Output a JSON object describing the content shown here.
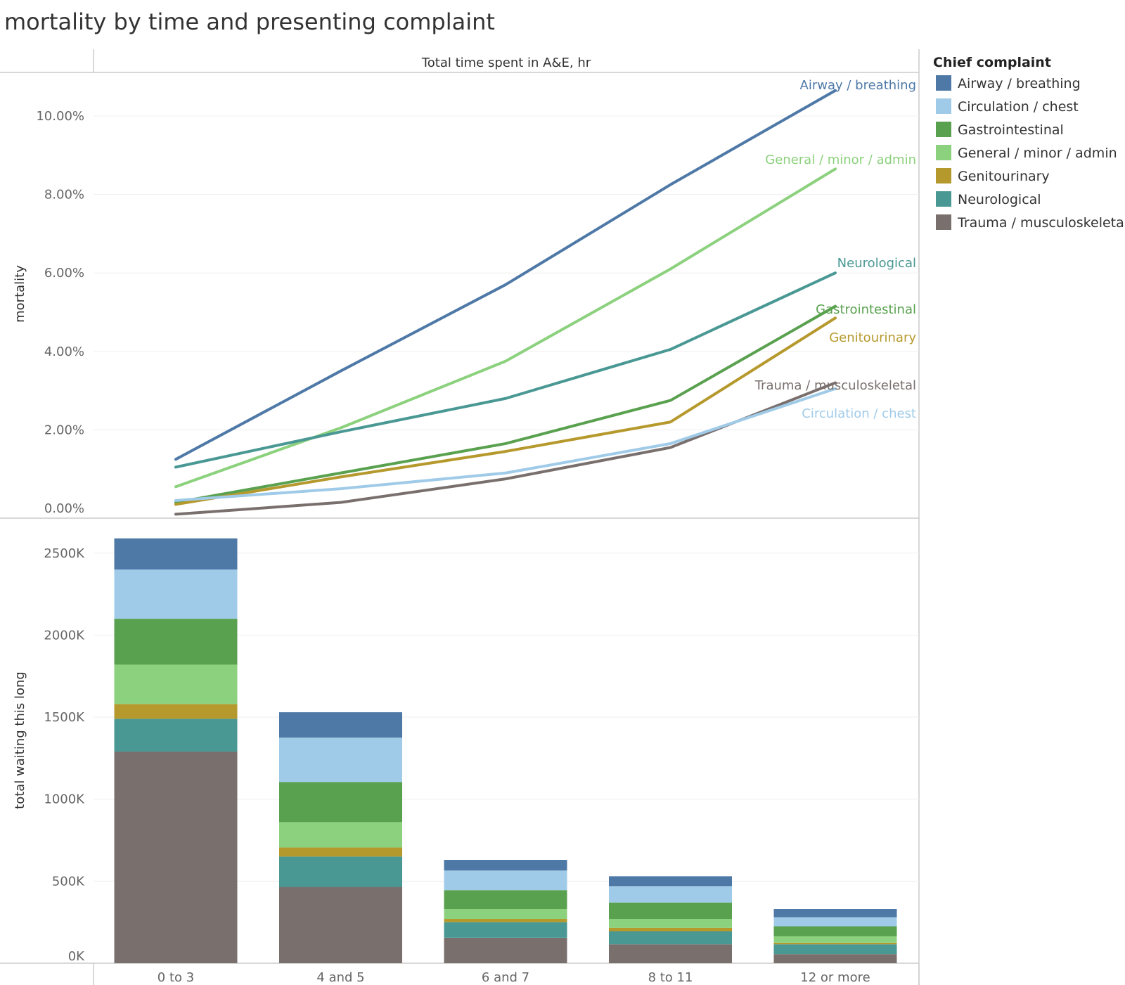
{
  "title": "mortality by time and presenting complaint",
  "chart_data": [
    {
      "type": "line",
      "header": "Total time spent in A&E, hr",
      "ylabel": "mortality",
      "ylim": [
        0,
        11
      ],
      "y_ticks": [
        "0.00%",
        "2.00%",
        "4.00%",
        "6.00%",
        "8.00%",
        "10.00%"
      ],
      "y_tick_values": [
        0,
        2,
        4,
        6,
        8,
        10
      ],
      "categories": [
        "0 to 3",
        "4 and 5",
        "6 and 7",
        "8 to 11",
        "12 or more"
      ],
      "series": [
        {
          "name": "Airway / breathing",
          "color": "#4e79a7",
          "values": [
            1.25,
            3.5,
            5.7,
            8.25,
            10.65
          ]
        },
        {
          "name": "General / minor / admin",
          "color": "#8cd17d",
          "values": [
            0.55,
            2.05,
            3.75,
            6.1,
            8.65
          ]
        },
        {
          "name": "Neurological",
          "color": "#499894",
          "values": [
            1.05,
            1.95,
            2.8,
            4.05,
            6.0
          ]
        },
        {
          "name": "Gastrointestinal",
          "color": "#59a14f",
          "values": [
            0.15,
            0.9,
            1.65,
            2.75,
            5.15
          ]
        },
        {
          "name": "Genitourinary",
          "color": "#b6992d",
          "values": [
            0.1,
            0.8,
            1.45,
            2.2,
            4.85
          ]
        },
        {
          "name": "Trauma / musculoskeletal",
          "color": "#79706e",
          "values": [
            -0.15,
            0.15,
            0.75,
            1.55,
            3.2
          ]
        },
        {
          "name": "Circulation / chest",
          "color": "#a0cbe8",
          "values": [
            0.2,
            0.5,
            0.9,
            1.65,
            3.05
          ]
        }
      ]
    },
    {
      "type": "bar",
      "stacked": true,
      "ylabel": "total waiting this long",
      "ylim": [
        0,
        2650
      ],
      "y_ticks": [
        "0K",
        "500K",
        "1000K",
        "1500K",
        "2000K",
        "2500K"
      ],
      "y_tick_values": [
        0,
        500,
        1000,
        1500,
        2000,
        2500
      ],
      "unit": "thousands",
      "categories": [
        "0 to 3",
        "4 and 5",
        "6 and 7",
        "8 to 11",
        "12 or more"
      ],
      "stack_order_bottom_to_top": [
        "Trauma / musculoskeletal",
        "Neurological",
        "Genitourinary",
        "General / minor / admin",
        "Gastrointestinal",
        "Circulation / chest",
        "Airway / breathing"
      ],
      "series": [
        {
          "name": "Trauma / musculoskeletal",
          "color": "#79706e",
          "values": [
            1290,
            465,
            155,
            115,
            55
          ]
        },
        {
          "name": "Neurological",
          "color": "#499894",
          "values": [
            200,
            185,
            95,
            80,
            60
          ]
        },
        {
          "name": "Genitourinary",
          "color": "#b6992d",
          "values": [
            90,
            55,
            20,
            20,
            10
          ]
        },
        {
          "name": "General / minor / admin",
          "color": "#8cd17d",
          "values": [
            240,
            155,
            60,
            55,
            40
          ]
        },
        {
          "name": "Gastrointestinal",
          "color": "#59a14f",
          "values": [
            280,
            245,
            115,
            100,
            60
          ]
        },
        {
          "name": "Circulation / chest",
          "color": "#a0cbe8",
          "values": [
            300,
            270,
            120,
            100,
            55
          ]
        },
        {
          "name": "Airway / breathing",
          "color": "#4e79a7",
          "values": [
            190,
            155,
            65,
            60,
            50
          ]
        }
      ]
    }
  ],
  "legend": {
    "title": "Chief complaint",
    "items": [
      {
        "name": "Airway / breathing",
        "color": "#4e79a7"
      },
      {
        "name": "Circulation / chest",
        "color": "#a0cbe8"
      },
      {
        "name": "Gastrointestinal",
        "color": "#59a14f"
      },
      {
        "name": "General / minor / admin",
        "color": "#8cd17d"
      },
      {
        "name": "Genitourinary",
        "color": "#b6992d"
      },
      {
        "name": "Neurological",
        "color": "#499894"
      },
      {
        "name": "Trauma / musculoskeletal",
        "color": "#79706e"
      }
    ]
  }
}
